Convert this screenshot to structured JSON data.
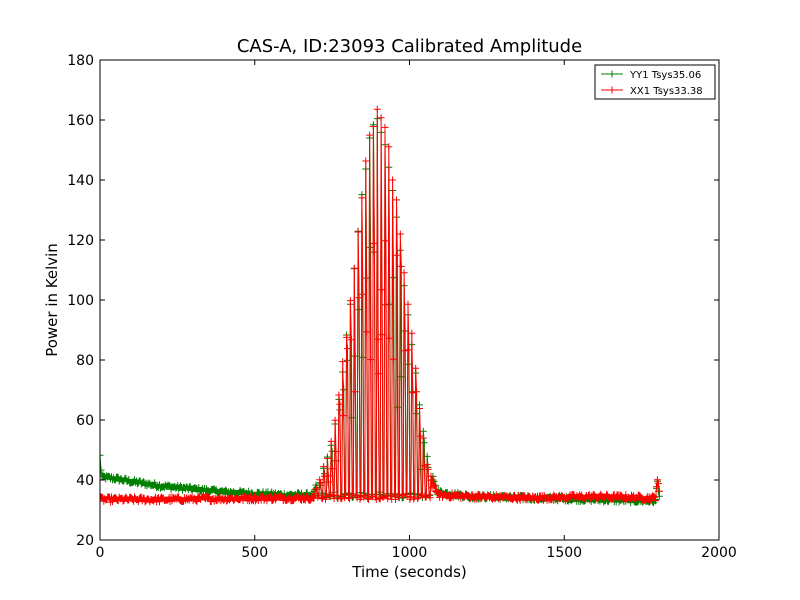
{
  "chart_data": {
    "type": "line",
    "title": "CAS-A, ID:23093 Calibrated Amplitude",
    "xlabel": "Time (seconds)",
    "ylabel": "Power in Kelvin",
    "xlim": [
      0,
      2000
    ],
    "ylim": [
      20,
      180
    ],
    "xticks": [
      "0",
      "500",
      "1000",
      "1500",
      "2000"
    ],
    "yticks": [
      "20",
      "40",
      "60",
      "80",
      "100",
      "120",
      "140",
      "160",
      "180"
    ],
    "grid": false,
    "legend_position": "top-right",
    "series": [
      {
        "name": "YY1 Tsys35.06",
        "color": "#008000",
        "envelope": [
          {
            "t": 0,
            "value": 48
          },
          {
            "t": 5,
            "value": 41
          },
          {
            "t": 50,
            "value": 40.5
          },
          {
            "t": 100,
            "value": 39.5
          },
          {
            "t": 200,
            "value": 38
          },
          {
            "t": 300,
            "value": 37
          },
          {
            "t": 400,
            "value": 36
          },
          {
            "t": 500,
            "value": 35.5
          },
          {
            "t": 600,
            "value": 35
          },
          {
            "t": 690,
            "value": 35
          },
          {
            "t": 720,
            "value": 45
          },
          {
            "t": 750,
            "value": 55
          },
          {
            "t": 780,
            "value": 75
          },
          {
            "t": 810,
            "value": 100
          },
          {
            "t": 840,
            "value": 130
          },
          {
            "t": 870,
            "value": 155
          },
          {
            "t": 895,
            "value": 162
          },
          {
            "t": 920,
            "value": 155
          },
          {
            "t": 950,
            "value": 135
          },
          {
            "t": 980,
            "value": 110
          },
          {
            "t": 1010,
            "value": 85
          },
          {
            "t": 1040,
            "value": 60
          },
          {
            "t": 1060,
            "value": 46
          },
          {
            "t": 1090,
            "value": 36
          },
          {
            "t": 1200,
            "value": 34.5
          },
          {
            "t": 1400,
            "value": 34
          },
          {
            "t": 1600,
            "value": 33.5
          },
          {
            "t": 1795,
            "value": 33
          },
          {
            "t": 1800,
            "value": 40
          },
          {
            "t": 1810,
            "value": 33
          }
        ]
      },
      {
        "name": "XX1 Tsys33.38",
        "color": "#ff0000",
        "envelope": [
          {
            "t": 0,
            "value": 33.5
          },
          {
            "t": 200,
            "value": 33.5
          },
          {
            "t": 400,
            "value": 33.8
          },
          {
            "t": 600,
            "value": 34
          },
          {
            "t": 690,
            "value": 34
          },
          {
            "t": 720,
            "value": 45
          },
          {
            "t": 750,
            "value": 55
          },
          {
            "t": 780,
            "value": 76
          },
          {
            "t": 810,
            "value": 101
          },
          {
            "t": 840,
            "value": 131
          },
          {
            "t": 870,
            "value": 157
          },
          {
            "t": 900,
            "value": 165
          },
          {
            "t": 925,
            "value": 157
          },
          {
            "t": 955,
            "value": 136
          },
          {
            "t": 985,
            "value": 110
          },
          {
            "t": 1015,
            "value": 83
          },
          {
            "t": 1040,
            "value": 58
          },
          {
            "t": 1060,
            "value": 45
          },
          {
            "t": 1090,
            "value": 35
          },
          {
            "t": 1200,
            "value": 34.5
          },
          {
            "t": 1400,
            "value": 34
          },
          {
            "t": 1600,
            "value": 34.5
          },
          {
            "t": 1795,
            "value": 34
          },
          {
            "t": 1800,
            "value": 41
          },
          {
            "t": 1810,
            "value": 34
          }
        ]
      }
    ]
  }
}
